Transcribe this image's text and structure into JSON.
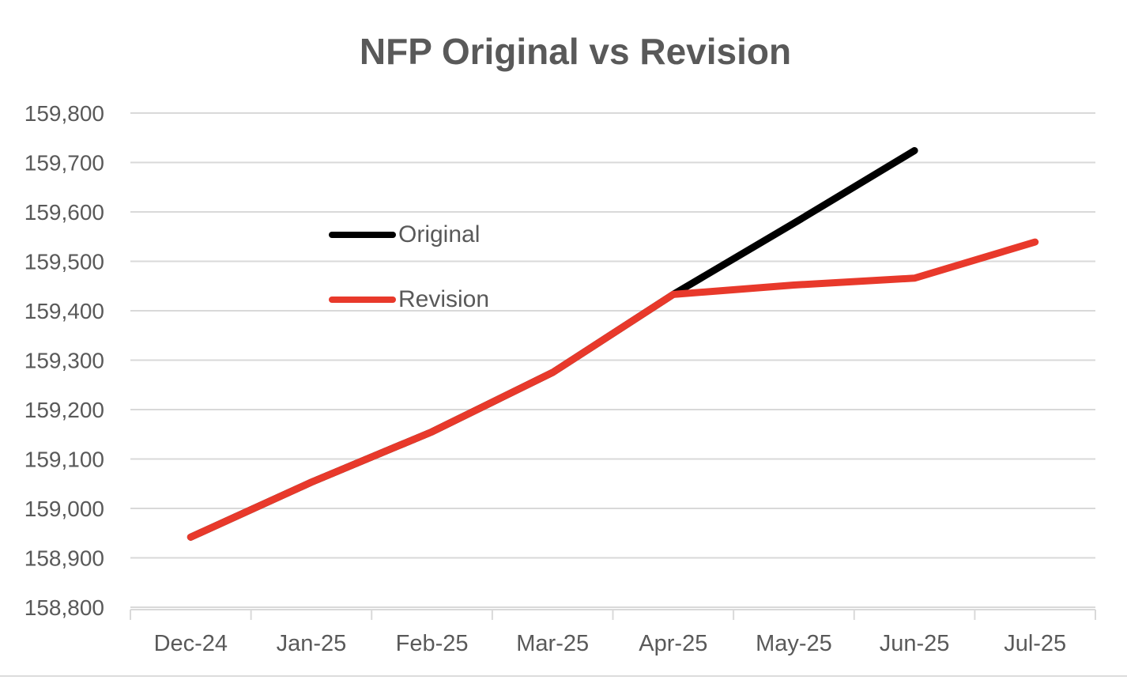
{
  "title": "NFP Original vs Revision",
  "chart_data": {
    "type": "line",
    "title": "NFP Original vs Revision",
    "categories": [
      "Dec-24",
      "Jan-25",
      "Feb-25",
      "Mar-25",
      "Apr-25",
      "May-25",
      "Jun-25",
      "Jul-25"
    ],
    "series": [
      {
        "name": "Original",
        "color": "#000000",
        "values": [
          158942,
          159053,
          159155,
          159275,
          159433,
          159577,
          159724,
          null
        ]
      },
      {
        "name": "Revision",
        "color": "#E8392B",
        "values": [
          158942,
          159053,
          159155,
          159275,
          159433,
          159452,
          159466,
          159539
        ]
      }
    ],
    "ylim": [
      158800,
      159800
    ],
    "ytick_step": 100,
    "ytick_labels": [
      "158,800",
      "158,900",
      "159,000",
      "159,100",
      "159,200",
      "159,300",
      "159,400",
      "159,500",
      "159,600",
      "159,700",
      "159,800"
    ],
    "grid": "horizontal-only",
    "legend_position": "inside-left-middle",
    "line_width": 9,
    "colors": {
      "grid": "#D9D9D9",
      "axis": "#D9D9D9",
      "tick_text": "#595959",
      "title_text": "#595959"
    }
  }
}
